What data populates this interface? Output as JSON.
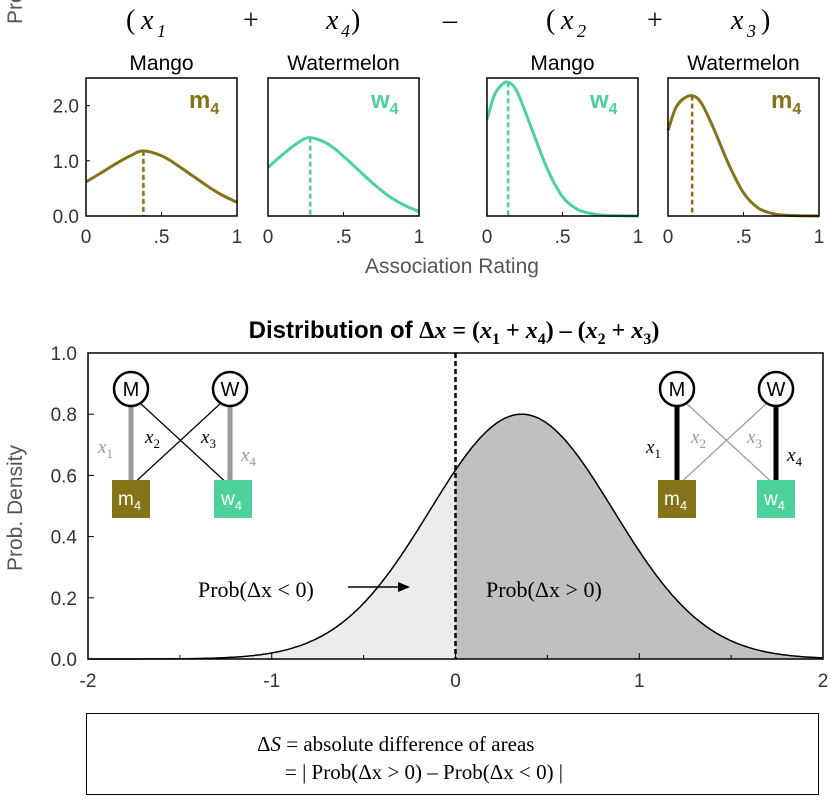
{
  "top_equation": {
    "open1": "(",
    "x1": "x",
    "x1_sub": "1",
    "plus1": "+",
    "x4": "x",
    "x4_sub": "4",
    "close1": ")",
    "minus": "–",
    "open2": "(",
    "x2": "x",
    "x2_sub": "2",
    "plus2": "+",
    "x3": "x",
    "x3_sub": "3",
    "close2": ")"
  },
  "colors": {
    "mango": "#857318",
    "watermelon": "#4DD29B",
    "light_fill": "#ececec",
    "dark_fill": "#c0c0c0",
    "gray_edge": "#999999"
  },
  "chart_data": [
    {
      "type": "line",
      "panel": "x1",
      "title": "Mango",
      "badge": "m",
      "badge_sub": "4",
      "color": "#857318",
      "xlim": [
        0,
        1
      ],
      "ylim": [
        0,
        2.5
      ],
      "x_ticks": [
        "0",
        ".5",
        "1"
      ],
      "y_ticks": [
        "0.0",
        "1.0",
        "2.0"
      ],
      "ylabel": "Prob. Density",
      "x": [
        0,
        0.1,
        0.2,
        0.3,
        0.38,
        0.5,
        0.6,
        0.7,
        0.8,
        0.9,
        1.0
      ],
      "y": [
        0.62,
        0.78,
        0.95,
        1.1,
        1.18,
        1.09,
        0.93,
        0.74,
        0.55,
        0.38,
        0.25
      ],
      "mode_x": 0.38,
      "mode_y": 1.18
    },
    {
      "type": "line",
      "panel": "x4",
      "title": "Watermelon",
      "badge": "w",
      "badge_sub": "4",
      "color": "#4DD29B",
      "xlim": [
        0,
        1
      ],
      "ylim": [
        0,
        2.5
      ],
      "x_ticks": [
        "0",
        ".5",
        "1"
      ],
      "x": [
        0,
        0.1,
        0.2,
        0.28,
        0.4,
        0.5,
        0.6,
        0.7,
        0.8,
        0.9,
        1.0
      ],
      "y": [
        0.88,
        1.12,
        1.33,
        1.42,
        1.3,
        1.08,
        0.83,
        0.58,
        0.36,
        0.2,
        0.08
      ],
      "mode_x": 0.28,
      "mode_y": 1.42
    },
    {
      "type": "line",
      "panel": "x2",
      "title": "Mango",
      "badge": "w",
      "badge_sub": "4",
      "color": "#4DD29B",
      "xlim": [
        0,
        1
      ],
      "ylim": [
        0,
        2.5
      ],
      "x_ticks": [
        "0",
        ".5",
        "1"
      ],
      "x": [
        0,
        0.05,
        0.1,
        0.14,
        0.2,
        0.3,
        0.4,
        0.5,
        0.6,
        0.7,
        0.8,
        1.0
      ],
      "y": [
        1.75,
        2.2,
        2.38,
        2.42,
        2.25,
        1.55,
        0.85,
        0.35,
        0.12,
        0.04,
        0.01,
        0.0
      ],
      "mode_x": 0.14,
      "mode_y": 2.42
    },
    {
      "type": "line",
      "panel": "x3",
      "title": "Watermelon",
      "badge": "m",
      "badge_sub": "4",
      "color": "#857318",
      "xlim": [
        0,
        1
      ],
      "ylim": [
        0,
        2.5
      ],
      "x_ticks": [
        "0",
        ".5",
        "1"
      ],
      "x": [
        0,
        0.05,
        0.1,
        0.16,
        0.22,
        0.3,
        0.4,
        0.5,
        0.6,
        0.7,
        0.8,
        1.0
      ],
      "y": [
        1.55,
        1.95,
        2.12,
        2.18,
        2.05,
        1.6,
        0.95,
        0.42,
        0.14,
        0.04,
        0.01,
        0.0
      ],
      "mode_x": 0.16,
      "mode_y": 2.18
    },
    {
      "type": "area",
      "panel": "delta",
      "title": "Distribution of Δx = (x1 + x4) – (x2 + x3)",
      "xlim": [
        -2,
        2
      ],
      "ylim": [
        0,
        1
      ],
      "x_ticks": [
        "-2",
        "-1",
        "0",
        "1",
        "2"
      ],
      "y_ticks": [
        "0.0",
        "0.2",
        "0.4",
        "0.6",
        "0.8",
        "1.0"
      ],
      "ylabel": "Prob. Density",
      "mean": 0.36,
      "sd": 0.5,
      "peak": 0.8,
      "threshold": 0,
      "label_left": "Prob(Δx < 0)",
      "label_right": "Prob(Δx > 0)"
    }
  ],
  "shared_xlabel": "Association Rating",
  "main_title": {
    "lead": "Distribution of ",
    "delta": "Δ",
    "x": "x",
    "eq": " = (",
    "x1": "x",
    "s1": "1",
    "plus1": " + ",
    "x4": "x",
    "s4": "4",
    "mid": ") – (",
    "x2": "x",
    "s2": "2",
    "plus2": " + ",
    "x3": "x",
    "s3": "3",
    "end": ")"
  },
  "network_left": {
    "node_m": "M",
    "node_w": "W",
    "item_m": "m",
    "item_m_sub": "4",
    "item_w": "w",
    "item_w_sub": "4",
    "e1": "x",
    "e1s": "1",
    "e2": "x",
    "e2s": "2",
    "e3": "x",
    "e3s": "3",
    "e4": "x",
    "e4s": "4"
  },
  "network_right": {
    "node_m": "M",
    "node_w": "W",
    "item_m": "m",
    "item_m_sub": "4",
    "item_w": "w",
    "item_w_sub": "4",
    "e1": "x",
    "e1s": "1",
    "e2": "x",
    "e2s": "2",
    "e3": "x",
    "e3s": "3",
    "e4": "x",
    "e4s": "4"
  },
  "formula": {
    "line1_delta": "Δ",
    "line1_s": "S",
    "line1_rest": " = absolute difference of areas",
    "line2": "= | Prob(Δx > 0) – Prob(Δx < 0) |"
  }
}
